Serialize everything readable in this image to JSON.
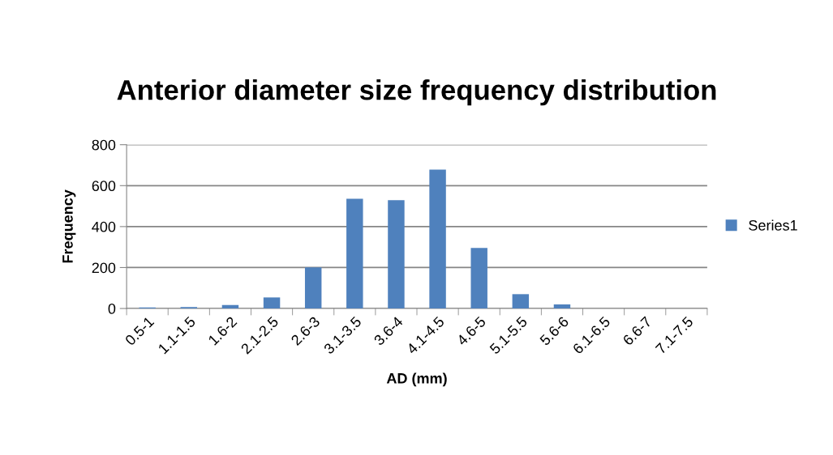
{
  "chart_data": {
    "type": "bar",
    "title": "Anterior diameter size frequency distribution",
    "xlabel": "AD (mm)",
    "ylabel": "Frequency",
    "categories": [
      "0.5-1",
      "1.1-1.5",
      "1.6-2",
      "2.1-2.5",
      "2.6-3",
      "3.1-3.5",
      "3.6-4",
      "4.1-4.5",
      "4.6-5",
      "5.1-5.5",
      "5.6-6",
      "6.1-6.5",
      "6.6-7",
      "7.1-7.5"
    ],
    "series": [
      {
        "name": "Series1",
        "color": "#4f81bd",
        "values": [
          5,
          7,
          17,
          54,
          201,
          536,
          529,
          678,
          296,
          70,
          20,
          0,
          0,
          0
        ]
      }
    ],
    "ylim": [
      0,
      800
    ],
    "yticks": [
      0,
      200,
      400,
      600,
      800
    ],
    "grid": "y",
    "legend": "right"
  }
}
